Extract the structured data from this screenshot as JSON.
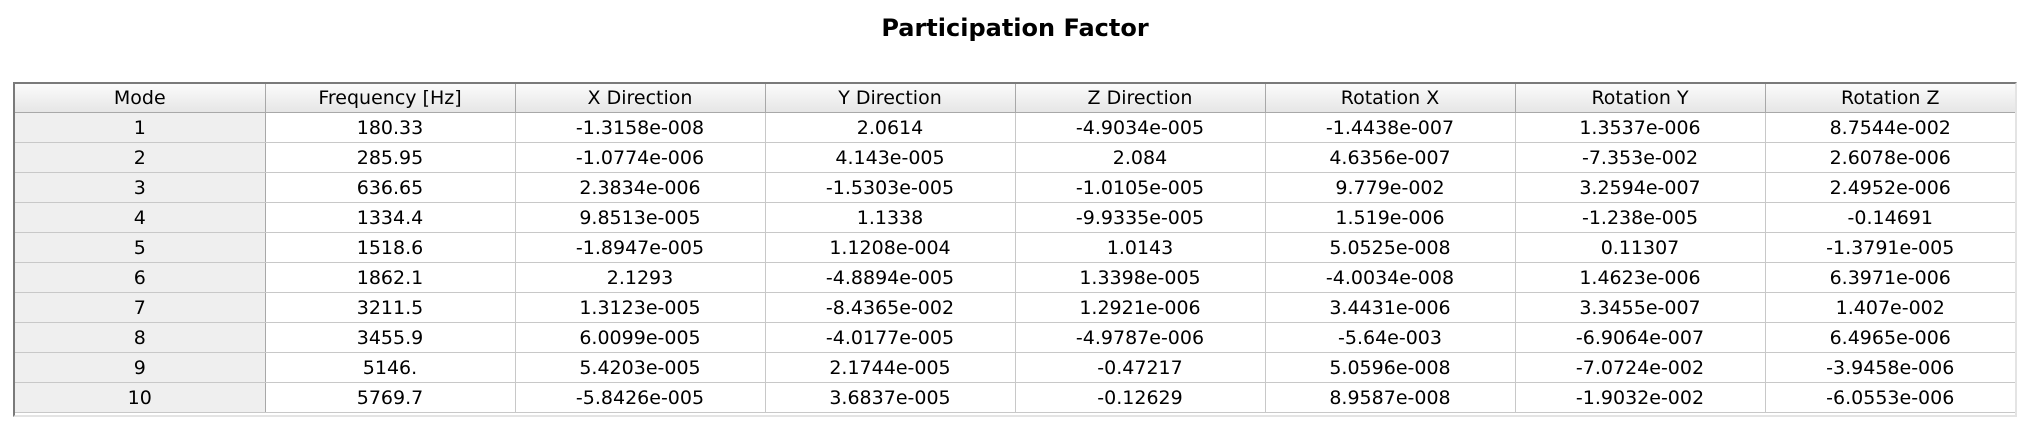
{
  "title": "Participation Factor",
  "table": {
    "columns": [
      "Mode",
      "Frequency [Hz]",
      "X Direction",
      "Y Direction",
      "Z Direction",
      "Rotation X",
      "Rotation Y",
      "Rotation Z"
    ],
    "rows": [
      [
        "1",
        "180.33",
        "-1.3158e-008",
        "2.0614",
        "-4.9034e-005",
        "-1.4438e-007",
        "1.3537e-006",
        "8.7544e-002"
      ],
      [
        "2",
        "285.95",
        "-1.0774e-006",
        "4.143e-005",
        "2.084",
        "4.6356e-007",
        "-7.353e-002",
        "2.6078e-006"
      ],
      [
        "3",
        "636.65",
        "2.3834e-006",
        "-1.5303e-005",
        "-1.0105e-005",
        "9.779e-002",
        "3.2594e-007",
        "2.4952e-006"
      ],
      [
        "4",
        "1334.4",
        "9.8513e-005",
        "1.1338",
        "-9.9335e-005",
        "1.519e-006",
        "-1.238e-005",
        "-0.14691"
      ],
      [
        "5",
        "1518.6",
        "-1.8947e-005",
        "1.1208e-004",
        "1.0143",
        "5.0525e-008",
        "0.11307",
        "-1.3791e-005"
      ],
      [
        "6",
        "1862.1",
        "2.1293",
        "-4.8894e-005",
        "1.3398e-005",
        "-4.0034e-008",
        "1.4623e-006",
        "6.3971e-006"
      ],
      [
        "7",
        "3211.5",
        "1.3123e-005",
        "-8.4365e-002",
        "1.2921e-006",
        "3.4431e-006",
        "3.3455e-007",
        "1.407e-002"
      ],
      [
        "8",
        "3455.9",
        "6.0099e-005",
        "-4.0177e-005",
        "-4.9787e-006",
        "-5.64e-003",
        "-6.9064e-007",
        "6.4965e-006"
      ],
      [
        "9",
        "5146.",
        "5.4203e-005",
        "2.1744e-005",
        "-0.47217",
        "5.0596e-008",
        "-7.0724e-002",
        "-3.9458e-006"
      ],
      [
        "10",
        "5769.7",
        "-5.8426e-005",
        "3.6837e-005",
        "-0.12629",
        "8.9587e-008",
        "-1.9032e-002",
        "-6.0553e-006"
      ]
    ]
  }
}
